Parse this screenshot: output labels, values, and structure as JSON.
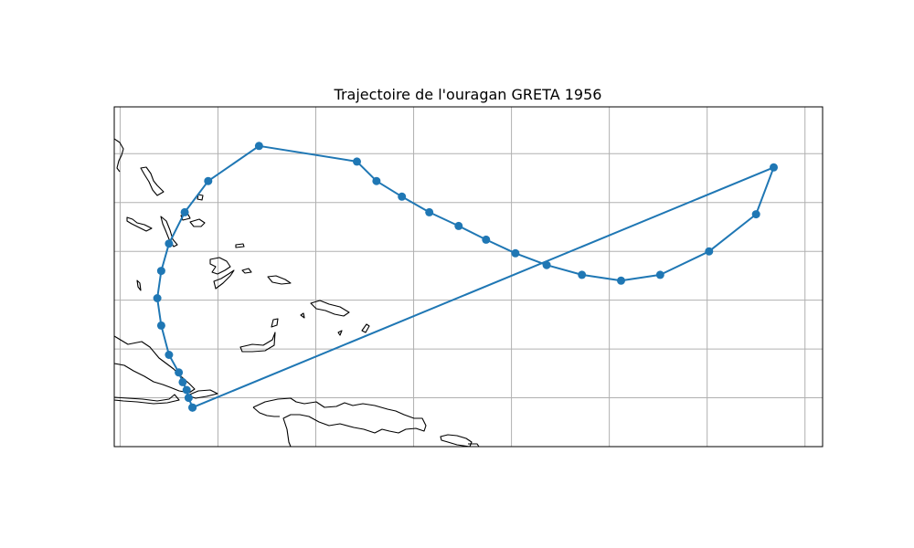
{
  "figure": {
    "title": "Trajectoire de l'ouragan GRETA 1956"
  },
  "colors": {
    "track": "#1f77b4",
    "grid": "#b0b0b0",
    "coastline": "#000000",
    "frame": "#000000"
  },
  "chart_data": {
    "type": "line",
    "title": "Trajectoire de l'ouragan GRETA 1956",
    "xlabel": "",
    "ylabel": "",
    "projection": "map (longitude / latitude)",
    "xlim": [
      -80.3,
      -44.1
    ],
    "ylim": [
      12.5,
      29.9
    ],
    "grid": true,
    "gridlines_lon": [
      -80,
      -75,
      -70,
      -65,
      -60,
      -55,
      -50,
      -45
    ],
    "gridlines_lat": [
      15,
      17.5,
      20,
      22.5,
      25,
      27.5
    ],
    "markers": "circle",
    "series": [
      {
        "x": [
          -76.3,
          -76.5,
          -76.6,
          -76.8,
          -77.0,
          -77.5,
          -77.9,
          -78.1,
          -77.9,
          -77.5,
          -76.7,
          -75.5,
          -72.9,
          -67.9,
          -66.9,
          -65.6,
          -64.2,
          -62.7,
          -61.3,
          -59.8,
          -58.2,
          -56.4,
          -54.4,
          -52.4,
          -49.9,
          -47.5,
          -46.6,
          -76.3
        ],
        "y": [
          14.5,
          15.0,
          15.4,
          15.8,
          16.3,
          17.2,
          18.7,
          20.1,
          21.5,
          22.9,
          24.5,
          26.1,
          27.9,
          27.1,
          26.1,
          25.3,
          24.5,
          23.8,
          23.1,
          22.4,
          21.8,
          21.3,
          21.0,
          21.3,
          22.5,
          24.4,
          26.8,
          14.5
        ]
      }
    ]
  }
}
